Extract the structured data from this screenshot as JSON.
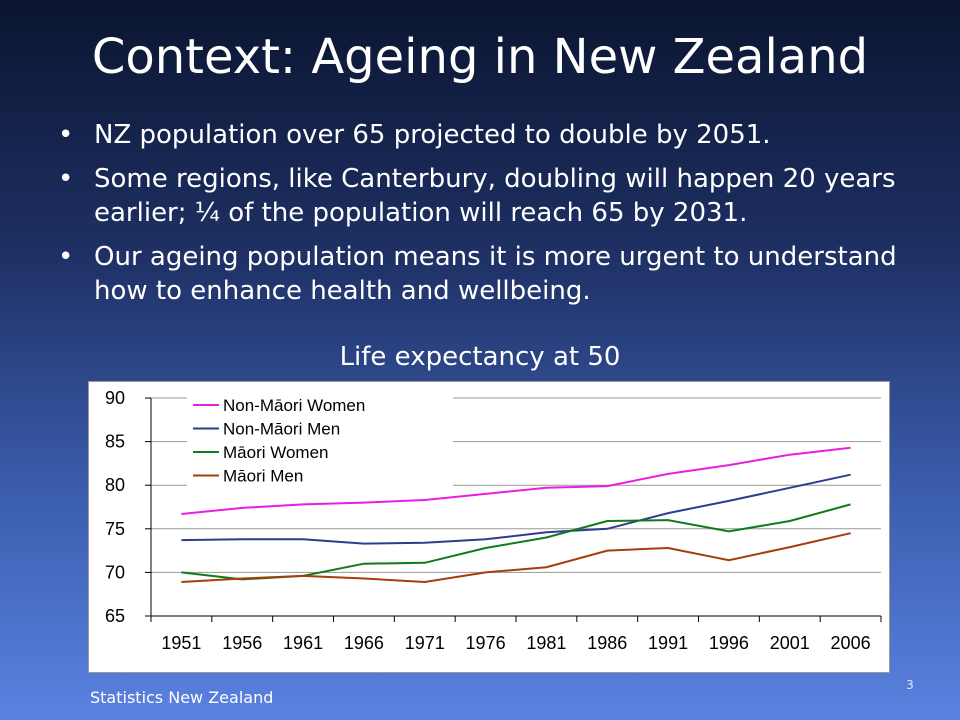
{
  "slide": {
    "title": "Context: Ageing in New Zealand",
    "bullets": [
      "NZ population over 65 projected to double by 2051.",
      "Some regions, like Canterbury, doubling will happen 20 years earlier; ¼ of the population will reach 65 by 2031.",
      "Our ageing population means it is more urgent to understand how to enhance health and wellbeing."
    ],
    "bullet_glyph": "•",
    "chart_heading": "Life expectancy at 50",
    "footer": "Statistics New Zealand",
    "page_number": "3"
  },
  "chart_data": {
    "type": "line",
    "title": "Life expectancy at 50",
    "xlabel": "",
    "ylabel": "",
    "categories": [
      "1951",
      "1956",
      "1961",
      "1966",
      "1971",
      "1976",
      "1981",
      "1986",
      "1991",
      "1996",
      "2001",
      "2006"
    ],
    "ylim": [
      65,
      90
    ],
    "yticks": [
      65,
      70,
      75,
      80,
      85,
      90
    ],
    "grid": "horizontal",
    "legend": "top-left",
    "series": [
      {
        "name": "Non-Māori Women",
        "color": "#e81ee0",
        "values": [
          76.7,
          77.4,
          77.8,
          78.0,
          78.3,
          79.0,
          79.7,
          79.9,
          81.3,
          82.3,
          83.5,
          84.3
        ]
      },
      {
        "name": "Non-Māori Men",
        "color": "#2e3d8f",
        "values": [
          73.7,
          73.8,
          73.8,
          73.3,
          73.4,
          73.8,
          74.6,
          75.0,
          76.8,
          78.2,
          79.7,
          81.2
        ]
      },
      {
        "name": "Māori Women",
        "color": "#117a1c",
        "values": [
          70.0,
          69.2,
          69.6,
          71.0,
          71.1,
          72.8,
          74.0,
          75.9,
          76.0,
          74.7,
          75.9,
          77.8
        ]
      },
      {
        "name": "Māori Men",
        "color": "#a63d0a",
        "values": [
          68.9,
          69.3,
          69.6,
          69.3,
          68.9,
          70.0,
          70.6,
          72.5,
          72.8,
          71.4,
          72.9,
          74.5
        ]
      }
    ]
  }
}
